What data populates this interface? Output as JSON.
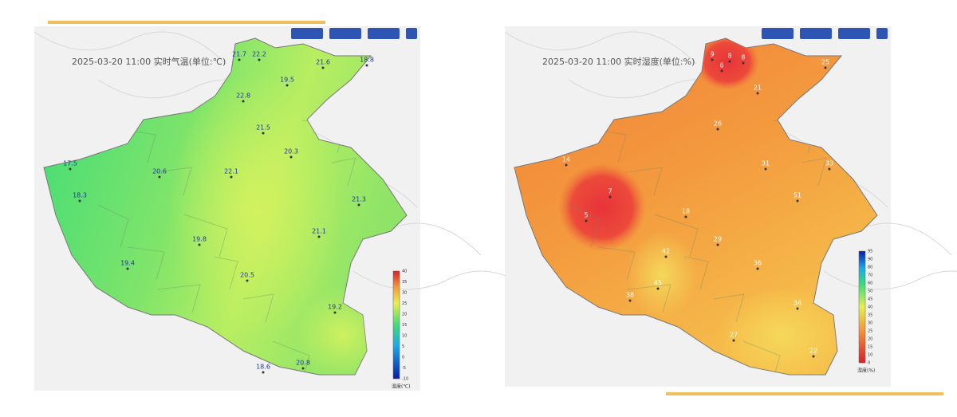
{
  "panels": [
    {
      "title": "2025-03-20 11:00 实时气温(单位:℃)",
      "stations": [
        21.7,
        22.2,
        21.6,
        18.8,
        19.5,
        22.8,
        21.5,
        20.3,
        17.5,
        20.6,
        22.1,
        19.4,
        18.3,
        21.1,
        20.5,
        19.2,
        18.6,
        20.8,
        19.8,
        21.3
      ],
      "legend": {
        "unit": "温度(℃)",
        "ticks": [
          40,
          35,
          30,
          25,
          20,
          15,
          10,
          5,
          0,
          -5,
          -10
        ]
      }
    },
    {
      "title": "2025-03-20 11:00 实时湿度(单位:%)",
      "stations": [
        9,
        8,
        8,
        6,
        21,
        25,
        26,
        31,
        33,
        7,
        5,
        14,
        42,
        45,
        38,
        51,
        29,
        36,
        27,
        22,
        34,
        18
      ],
      "legend": {
        "unit": "湿度(%)",
        "ticks": [
          95,
          90,
          80,
          70,
          60,
          50,
          45,
          40,
          35,
          30,
          25,
          20,
          15,
          10,
          0
        ]
      }
    }
  ]
}
